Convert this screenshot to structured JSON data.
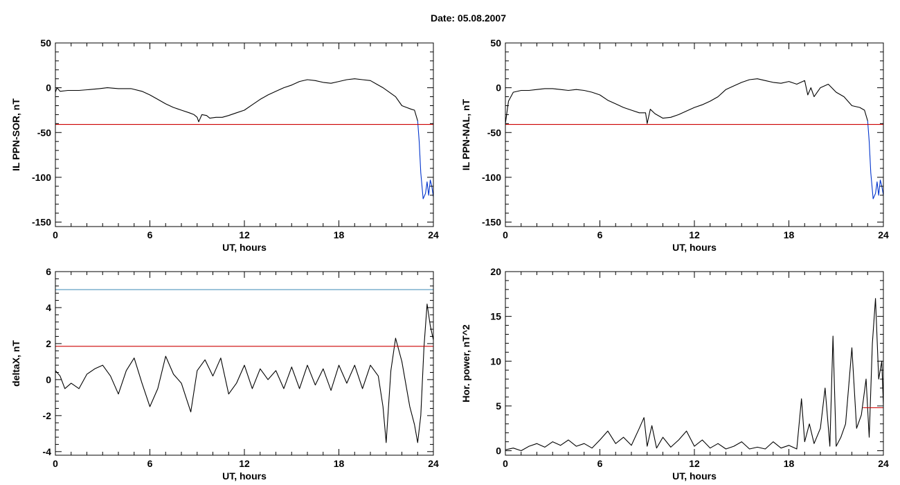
{
  "title": "Date:  05.08.2007",
  "chart_data": [
    {
      "type": "line",
      "xlabel": "UT, hours",
      "ylabel": "IL PPN-SOR, nT",
      "xlim": [
        0,
        24
      ],
      "ylim": [
        -155,
        50
      ],
      "xticks": [
        0,
        6,
        12,
        18,
        24
      ],
      "yticks": [
        50,
        0,
        -50,
        -100,
        -150
      ],
      "grid": false,
      "series": [
        {
          "color": "#000000",
          "x": [
            0,
            0.1,
            0.3,
            0.8,
            1.5,
            2.2,
            2.8,
            3.3,
            4.0,
            4.8,
            5.5,
            6.0,
            6.5,
            7.0,
            7.5,
            8.0,
            8.5,
            8.8,
            9.0,
            9.1,
            9.3,
            9.6,
            9.8,
            10.2,
            10.6,
            11.0,
            11.5,
            12.0,
            12.5,
            13.0,
            13.5,
            14.0,
            14.5,
            15.0,
            15.5,
            16.0,
            16.5,
            17.0,
            17.5,
            18.0,
            18.5,
            19.0,
            19.5,
            20.0,
            20.4,
            20.8,
            21.2,
            21.6,
            22.0,
            22.3,
            22.6,
            22.8,
            23.0
          ],
          "y": [
            -5,
            0,
            -4,
            -3,
            -3,
            -2,
            -1,
            0,
            -1,
            -1,
            -4,
            -8,
            -13,
            -18,
            -22,
            -25,
            -28,
            -30,
            -33,
            -38,
            -30,
            -31,
            -34,
            -33,
            -33,
            -31,
            -28,
            -25,
            -19,
            -13,
            -8,
            -4,
            0,
            3,
            7,
            9,
            8,
            6,
            5,
            7,
            9,
            10,
            9,
            8,
            4,
            0,
            -5,
            -10,
            -20,
            -22,
            -24,
            -25,
            -37
          ]
        },
        {
          "color": "#0033cc",
          "x": [
            23.0,
            23.1,
            23.2,
            23.35,
            23.5,
            23.6,
            23.7,
            23.8,
            23.9,
            24.0
          ],
          "y": [
            -37,
            -60,
            -95,
            -124,
            -118,
            -105,
            -120,
            -103,
            -110,
            -122
          ]
        },
        {
          "color": "#cc0000",
          "x": [
            0,
            24
          ],
          "y": [
            -41,
            -41
          ]
        }
      ]
    },
    {
      "type": "line",
      "xlabel": "UT, hours",
      "ylabel": "IL PPN-NAL, nT",
      "xlim": [
        0,
        24
      ],
      "ylim": [
        -155,
        50
      ],
      "xticks": [
        0,
        6,
        12,
        18,
        24
      ],
      "yticks": [
        50,
        0,
        -50,
        -100,
        -150
      ],
      "grid": false,
      "series": [
        {
          "color": "#000000",
          "x": [
            0,
            0.2,
            0.5,
            1.0,
            1.5,
            2.0,
            2.5,
            3.0,
            3.5,
            4.0,
            4.5,
            5.0,
            5.5,
            6.0,
            6.5,
            7.0,
            7.5,
            8.0,
            8.5,
            8.9,
            9.0,
            9.2,
            9.5,
            10.0,
            10.5,
            11.0,
            11.5,
            12.0,
            12.5,
            13.0,
            13.5,
            14.0,
            14.5,
            15.0,
            15.5,
            16.0,
            16.5,
            17.0,
            17.5,
            18.0,
            18.5,
            19.0,
            19.2,
            19.4,
            19.6,
            20.0,
            20.5,
            21.0,
            21.5,
            22.0,
            22.5,
            22.8,
            23.0
          ],
          "y": [
            -40,
            -15,
            -5,
            -3,
            -3,
            -2,
            -1,
            -1,
            -2,
            -3,
            -2,
            -3,
            -5,
            -8,
            -14,
            -18,
            -22,
            -25,
            -28,
            -28,
            -40,
            -24,
            -29,
            -34,
            -33,
            -30,
            -26,
            -22,
            -19,
            -15,
            -10,
            -2,
            2,
            6,
            9,
            10,
            8,
            6,
            5,
            7,
            4,
            8,
            -8,
            0,
            -10,
            0,
            4,
            -5,
            -10,
            -20,
            -22,
            -25,
            -37
          ]
        },
        {
          "color": "#0033cc",
          "x": [
            23.0,
            23.1,
            23.2,
            23.35,
            23.5,
            23.6,
            23.7,
            23.8,
            23.9,
            24.0
          ],
          "y": [
            -37,
            -60,
            -95,
            -124,
            -118,
            -105,
            -120,
            -103,
            -110,
            -120
          ]
        },
        {
          "color": "#cc0000",
          "x": [
            0,
            24
          ],
          "y": [
            -41,
            -41
          ]
        }
      ]
    },
    {
      "type": "line",
      "xlabel": "UT, hours",
      "ylabel": "deltaX, nT",
      "xlim": [
        0,
        24
      ],
      "ylim": [
        -4.2,
        6
      ],
      "xticks": [
        0,
        6,
        12,
        18,
        24
      ],
      "yticks": [
        6,
        4,
        2,
        0,
        -2,
        -4
      ],
      "grid": false,
      "series": [
        {
          "color": "#000000",
          "x": [
            0,
            0.3,
            0.6,
            1.0,
            1.5,
            2.0,
            2.5,
            3.0,
            3.5,
            4.0,
            4.5,
            5.0,
            5.5,
            6.0,
            6.5,
            7.0,
            7.5,
            8.0,
            8.3,
            8.6,
            9.0,
            9.5,
            10.0,
            10.5,
            11.0,
            11.5,
            12.0,
            12.5,
            13.0,
            13.5,
            14.0,
            14.5,
            15.0,
            15.5,
            16.0,
            16.5,
            17.0,
            17.5,
            18.0,
            18.5,
            19.0,
            19.5,
            20.0,
            20.5,
            20.8,
            21.0,
            21.3,
            21.6,
            22.0,
            22.5,
            22.8,
            23.0,
            23.2,
            23.4,
            23.6,
            23.8,
            24.0
          ],
          "y": [
            0.5,
            0.2,
            -0.5,
            -0.2,
            -0.5,
            0.3,
            0.6,
            0.8,
            0.2,
            -0.8,
            0.5,
            1.2,
            -0.2,
            -1.5,
            -0.5,
            1.3,
            0.3,
            -0.2,
            -1.0,
            -1.8,
            0.5,
            1.1,
            0.2,
            1.2,
            -0.8,
            -0.2,
            0.8,
            -0.5,
            0.6,
            0.0,
            0.5,
            -0.5,
            0.7,
            -0.5,
            0.8,
            -0.3,
            0.6,
            -0.6,
            0.8,
            -0.2,
            0.8,
            -0.5,
            0.8,
            0.2,
            -1.5,
            -3.5,
            0.5,
            2.3,
            1.0,
            -1.5,
            -2.5,
            -3.5,
            -2.0,
            1.8,
            4.2,
            3.0,
            2.2
          ]
        },
        {
          "color": "#3a8ab5",
          "x": [
            0,
            24
          ],
          "y": [
            5,
            5
          ]
        },
        {
          "color": "#cc0000",
          "x": [
            0,
            24
          ],
          "y": [
            1.85,
            1.85
          ]
        }
      ]
    },
    {
      "type": "line",
      "xlabel": "UT, hours",
      "ylabel": "Hor. power, nT^2",
      "xlim": [
        0,
        24
      ],
      "ylim": [
        -0.5,
        20
      ],
      "xticks": [
        0,
        6,
        12,
        18,
        24
      ],
      "yticks": [
        20,
        15,
        10,
        5,
        0
      ],
      "grid": false,
      "series": [
        {
          "color": "#000000",
          "x": [
            0,
            0.5,
            1.0,
            1.5,
            2.0,
            2.5,
            3.0,
            3.5,
            4.0,
            4.5,
            5.0,
            5.5,
            6.0,
            6.5,
            7.0,
            7.5,
            8.0,
            8.5,
            8.8,
            9.0,
            9.3,
            9.6,
            10.0,
            10.5,
            11.0,
            11.5,
            12.0,
            12.5,
            13.0,
            13.5,
            14.0,
            14.5,
            15.0,
            15.5,
            16.0,
            16.5,
            17.0,
            17.5,
            18.0,
            18.5,
            18.8,
            19.0,
            19.3,
            19.6,
            20.0,
            20.3,
            20.6,
            20.8,
            21.0,
            21.3,
            21.6,
            22.0,
            22.3,
            22.6,
            22.9,
            23.1,
            23.3,
            23.5,
            23.7,
            23.9,
            24.0
          ],
          "y": [
            0.1,
            0.3,
            0.0,
            0.5,
            0.8,
            0.4,
            1.0,
            0.6,
            1.2,
            0.5,
            0.8,
            0.3,
            1.2,
            2.2,
            0.8,
            1.5,
            0.6,
            2.5,
            3.7,
            0.5,
            2.8,
            0.3,
            1.5,
            0.4,
            1.2,
            2.2,
            0.5,
            1.2,
            0.3,
            0.8,
            0.2,
            0.5,
            1.0,
            0.2,
            0.4,
            0.2,
            1.0,
            0.3,
            0.6,
            0.2,
            5.8,
            1.0,
            3.0,
            0.8,
            2.5,
            7.0,
            0.5,
            12.8,
            0.5,
            1.5,
            3.0,
            11.5,
            2.5,
            4.0,
            8.0,
            1.5,
            12.0,
            17.0,
            8.0,
            10.0,
            5.0
          ]
        },
        {
          "color": "#cc0000",
          "x": [
            22.7,
            24
          ],
          "y": [
            4.8,
            4.8
          ]
        }
      ]
    }
  ]
}
